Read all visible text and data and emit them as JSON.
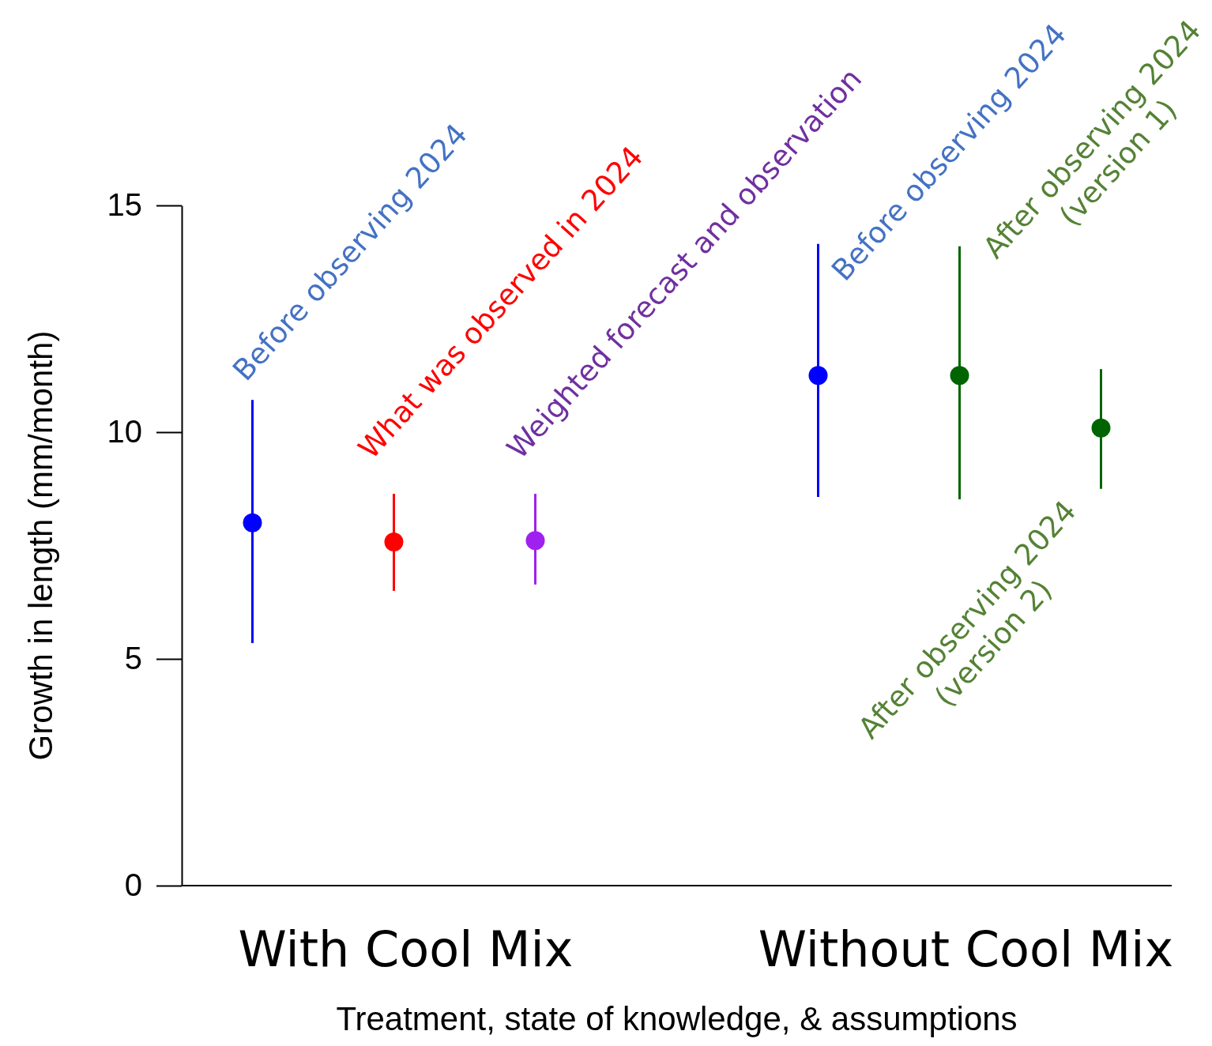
{
  "chart_data": {
    "type": "scatter",
    "xlabel": "Treatment, state of knowledge, & assumptions",
    "ylabel": "Growth in length (mm/month)",
    "categories": [
      null,
      null,
      null,
      null,
      null,
      null,
      null
    ],
    "series": [
      {
        "colors": [
          "#0000ff",
          "#ff0000",
          "#a020f0",
          null,
          "#0000ff",
          "#006400",
          "#006400"
        ],
        "values": [
          8.0,
          7.58,
          7.61,
          null,
          11.25,
          11.25,
          10.09
        ],
        "errors": [
          [
            5.35,
            10.71
          ],
          [
            6.5,
            8.64
          ],
          [
            6.64,
            8.64
          ],
          null,
          [
            8.57,
            14.15
          ],
          [
            8.52,
            14.1
          ],
          [
            8.75,
            11.39
          ]
        ]
      }
    ],
    "ylim": [
      0,
      15
    ],
    "yticks": [
      0,
      5,
      10,
      15
    ],
    "grid": false,
    "marker": "circle",
    "tick_labels": "y",
    "annotations": [
      "Before observing 2024",
      "What was observed in 2024",
      "Weighted forecast and observation",
      "Before observing 2024",
      "After observing 2024\n(version 1)",
      "After observing 2024\n(version 2)",
      "With Cool Mix",
      "Without Cool Mix"
    ]
  }
}
